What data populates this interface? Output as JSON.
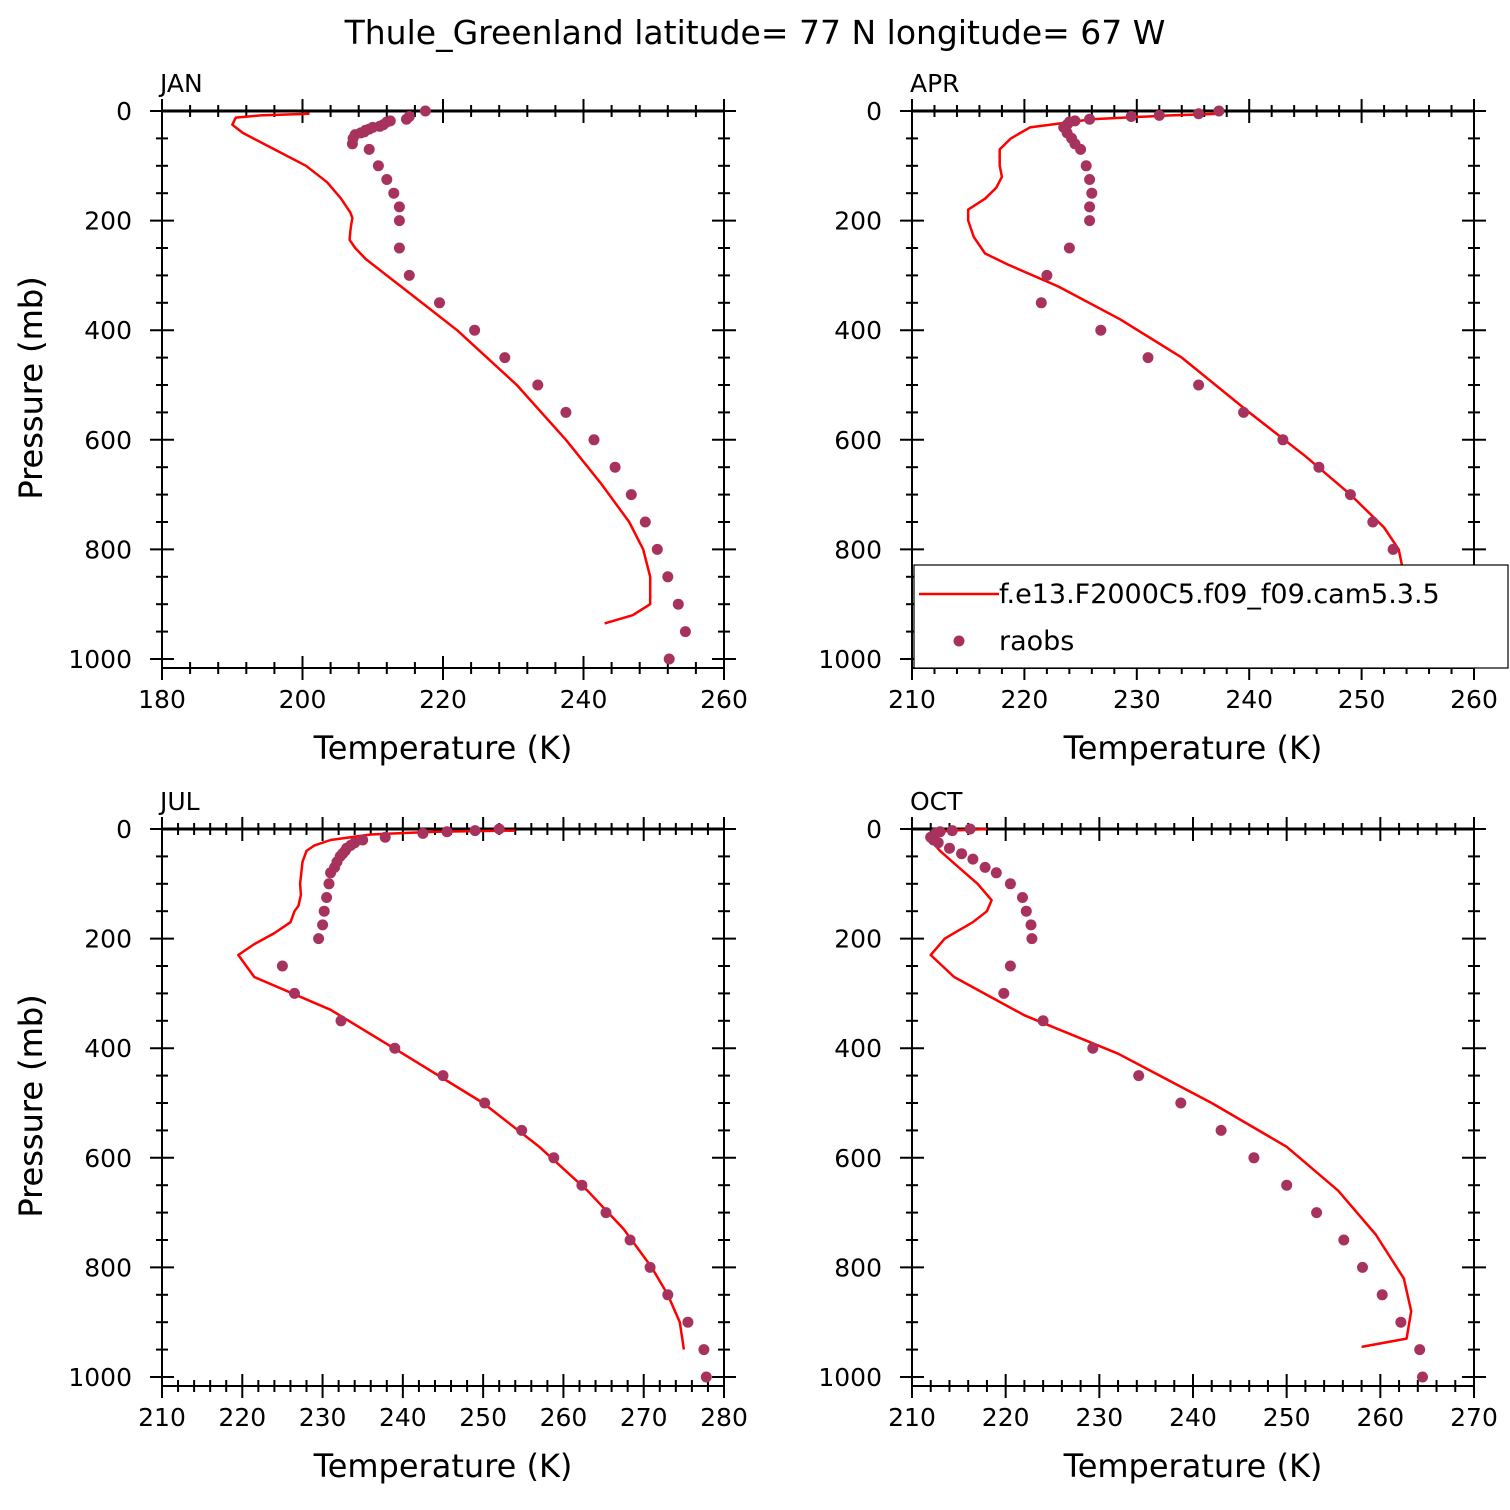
{
  "title": "Thule_Greenland  latitude= 77 N longitude= 67 W",
  "colors": {
    "model": "#ff0000",
    "obs": "#a8325e",
    "axis": "#000000"
  },
  "legend": {
    "model": "f.e13.F2000C5.f09_f09.cam5.3.5",
    "obs": "raobs",
    "panel": "APR",
    "placement": "bottom-right"
  },
  "chart_data": [
    {
      "type": "line",
      "panel": "JAN",
      "xlabel": "Temperature (K)",
      "ylabel": "Pressure (mb)",
      "xlim": [
        180,
        260
      ],
      "ylim": [
        1020,
        0
      ],
      "xticks": [
        180,
        200,
        220,
        240,
        260
      ],
      "yticks": [
        0,
        200,
        400,
        600,
        800,
        1000
      ],
      "y_inverted": true,
      "series": [
        {
          "name": "f.e13.F2000C5.f09_f09.cam5.3.5",
          "style": "line",
          "x": [
            201,
            194,
            190.5,
            190,
            191.5,
            196,
            200.5,
            203.5,
            205.5,
            206.8,
            207.1,
            206.9,
            206.8,
            206.7,
            207.5,
            209,
            214,
            222,
            230.5,
            237.5,
            242.5,
            246.5,
            248.5,
            249.5,
            249.5,
            247,
            243
          ],
          "y": [
            5,
            8,
            12,
            25,
            40,
            70,
            100,
            130,
            160,
            185,
            195,
            210,
            220,
            235,
            250,
            270,
            320,
            400,
            500,
            600,
            680,
            750,
            800,
            850,
            900,
            920,
            935
          ]
        },
        {
          "name": "raobs",
          "style": "points",
          "x": [
            217.5,
            215.2,
            214.8,
            212.5,
            212,
            211.5,
            211,
            210,
            209.5,
            209,
            208.8,
            208.3,
            207.5,
            207.2,
            207.1,
            209.5,
            210.8,
            212,
            213,
            213.8,
            213.8,
            213.8,
            215.2,
            219.5,
            224.5,
            228.8,
            233.5,
            237.5,
            241.5,
            244.5,
            246.8,
            248.8,
            250.5,
            252,
            253.5,
            254.5,
            252.2
          ],
          "y": [
            0,
            10,
            15,
            18,
            20,
            25,
            28,
            30,
            33,
            35,
            38,
            40,
            43,
            50,
            60,
            70,
            100,
            125,
            150,
            175,
            200,
            250,
            300,
            350,
            400,
            450,
            500,
            550,
            600,
            650,
            700,
            750,
            800,
            850,
            900,
            950,
            1000
          ]
        }
      ]
    },
    {
      "type": "line",
      "panel": "APR",
      "xlabel": "Temperature (K)",
      "ylabel": "Pressure (mb)",
      "xlim": [
        210,
        260
      ],
      "ylim": [
        1020,
        0
      ],
      "xticks": [
        210,
        220,
        230,
        240,
        250,
        260
      ],
      "yticks": [
        0,
        200,
        400,
        600,
        800,
        1000
      ],
      "y_inverted": true,
      "series": [
        {
          "name": "f.e13.F2000C5.f09_f09.cam5.3.5",
          "style": "line",
          "x": [
            237.5,
            233,
            226,
            220.5,
            218.8,
            217.8,
            217.8,
            218,
            217.5,
            216.5,
            215,
            215,
            215.5,
            216.5,
            218.5,
            223,
            228.5,
            234,
            240,
            245,
            249,
            252,
            253.3,
            253.8,
            254,
            253.5,
            251
          ],
          "y": [
            5,
            8,
            15,
            30,
            50,
            70,
            100,
            120,
            140,
            160,
            180,
            200,
            230,
            260,
            280,
            320,
            380,
            450,
            550,
            630,
            700,
            760,
            800,
            850,
            900,
            940,
            950
          ]
        },
        {
          "name": "raobs",
          "style": "points",
          "x": [
            237.3,
            235.5,
            232,
            229.5,
            225.8,
            224.5,
            224,
            223.8,
            223.5,
            223.8,
            224.2,
            224.5,
            225,
            225.5,
            225.8,
            226,
            225.8,
            225.8,
            224,
            222,
            221.5,
            226.8,
            231,
            235.5,
            239.5,
            243,
            246.2,
            249,
            251,
            252.8,
            254.2,
            256,
            257,
            257
          ],
          "y": [
            0,
            5,
            8,
            10,
            15,
            18,
            20,
            25,
            30,
            40,
            50,
            60,
            70,
            100,
            125,
            150,
            175,
            200,
            250,
            300,
            350,
            400,
            450,
            500,
            550,
            600,
            650,
            700,
            750,
            800,
            850,
            900,
            950,
            1000
          ]
        }
      ]
    },
    {
      "type": "line",
      "panel": "JUL",
      "xlabel": "Temperature (K)",
      "ylabel": "Pressure (mb)",
      "xlim": [
        210,
        280
      ],
      "ylim": [
        1020,
        0
      ],
      "xticks": [
        210,
        220,
        230,
        240,
        250,
        260,
        270,
        280
      ],
      "yticks": [
        0,
        200,
        400,
        600,
        800,
        1000
      ],
      "y_inverted": true,
      "series": [
        {
          "name": "f.e13.F2000C5.f09_f09.cam5.3.5",
          "style": "line",
          "x": [
            254,
            244,
            236,
            231,
            229,
            228,
            227.5,
            227.2,
            227.3,
            227,
            226.5,
            226,
            224,
            221.5,
            219.5,
            220.5,
            221.5,
            231,
            240,
            250,
            257,
            263,
            267.5,
            271,
            273,
            274.5,
            275
          ],
          "y": [
            3,
            5,
            10,
            20,
            30,
            40,
            60,
            100,
            120,
            140,
            150,
            170,
            190,
            210,
            230,
            250,
            270,
            330,
            410,
            500,
            580,
            660,
            730,
            800,
            850,
            900,
            950
          ]
        },
        {
          "name": "raobs",
          "style": "points",
          "x": [
            252,
            249,
            245.5,
            242.5,
            237.8,
            235,
            234,
            233.5,
            233,
            232.8,
            232.5,
            232.2,
            231.8,
            231.5,
            231,
            230.8,
            230.5,
            230.2,
            230,
            229.5,
            225,
            226.5,
            232.3,
            239,
            245,
            250.2,
            254.8,
            258.8,
            262.3,
            265.3,
            268.3,
            270.8,
            273,
            275.5,
            277.5,
            277.8
          ],
          "y": [
            0,
            3,
            5,
            8,
            15,
            20,
            25,
            30,
            35,
            40,
            45,
            50,
            60,
            70,
            80,
            100,
            125,
            150,
            175,
            200,
            250,
            300,
            350,
            400,
            450,
            500,
            550,
            600,
            650,
            700,
            750,
            800,
            850,
            900,
            950,
            1000
          ]
        }
      ]
    },
    {
      "type": "line",
      "panel": "OCT",
      "xlabel": "Temperature (K)",
      "ylabel": "Pressure (mb)",
      "xlim": [
        210,
        270
      ],
      "ylim": [
        1020,
        0
      ],
      "xticks": [
        210,
        220,
        230,
        240,
        250,
        260,
        270
      ],
      "yticks": [
        0,
        200,
        400,
        600,
        800,
        1000
      ],
      "y_inverted": true,
      "series": [
        {
          "name": "f.e13.F2000C5.f09_f09.cam5.3.5",
          "style": "line",
          "x": [
            218,
            214,
            212,
            212,
            213,
            215,
            217,
            218.5,
            218,
            216.5,
            214.5,
            213.5,
            212.5,
            212,
            214.5,
            222,
            232,
            242,
            250,
            255.5,
            259.5,
            262.5,
            263.3,
            262.8,
            258
          ],
          "y": [
            0,
            3,
            8,
            20,
            40,
            70,
            100,
            130,
            150,
            170,
            190,
            200,
            220,
            230,
            270,
            340,
            410,
            500,
            580,
            660,
            740,
            820,
            880,
            930,
            945
          ]
        },
        {
          "name": "raobs",
          "style": "points",
          "x": [
            216.2,
            214.3,
            213,
            212.5,
            212,
            212.3,
            212.8,
            214,
            215.3,
            216.5,
            217.8,
            219,
            220.5,
            221.8,
            222.2,
            222.7,
            222.8,
            220.5,
            219.8,
            224,
            229.3,
            234.2,
            238.7,
            243,
            246.5,
            250,
            253.2,
            256.1,
            258.1,
            260.2,
            262.2,
            264.2,
            264.5
          ],
          "y": [
            0,
            3,
            5,
            8,
            15,
            20,
            25,
            35,
            45,
            55,
            70,
            80,
            100,
            125,
            150,
            175,
            200,
            250,
            300,
            350,
            400,
            450,
            500,
            550,
            600,
            650,
            700,
            750,
            800,
            850,
            900,
            950,
            1000
          ]
        }
      ]
    }
  ]
}
